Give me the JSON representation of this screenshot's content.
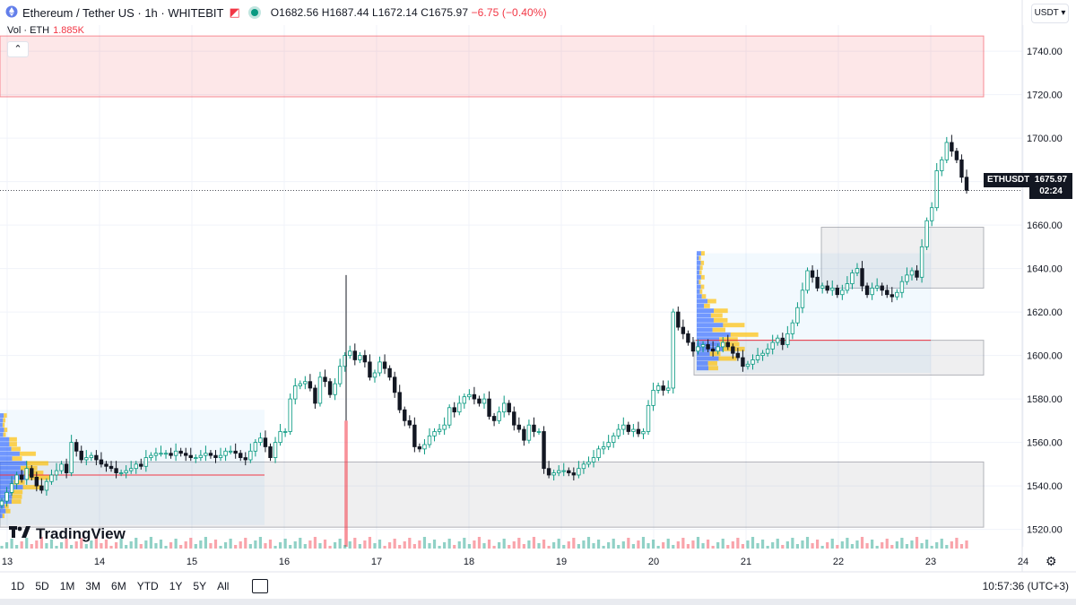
{
  "header": {
    "title": "Ethereum / Tether US · 1h · WHITEBIT",
    "open": "O1682.56",
    "high": "H1687.44",
    "low": "L1672.14",
    "close": "C1675.97",
    "change": "−6.75 (−0.40%)"
  },
  "volume": {
    "label": "Vol · ETH",
    "value": "1.885K"
  },
  "currency": "USDT",
  "last_price": {
    "symbol": "ETHUSDT",
    "price": "1675.97",
    "countdown": "02:24"
  },
  "logo_text": "TradingView",
  "timeframes": [
    "1D",
    "5D",
    "1M",
    "3M",
    "6M",
    "YTD",
    "1Y",
    "5Y",
    "All"
  ],
  "clock": "10:57:36 (UTC+3)",
  "colors": {
    "up": "#089981",
    "down": "#131722",
    "zone": "#f23645"
  },
  "chart_data": {
    "type": "candlestick",
    "title": "",
    "xlabel": "",
    "ylabel": "",
    "ylim": [
      1512,
      1752
    ],
    "yticks": [
      1520,
      1540,
      1560,
      1580,
      1600,
      1620,
      1640,
      1660,
      1680,
      1700,
      1720,
      1740
    ],
    "ytick_labels": [
      "1520.00",
      "1540.00",
      "1560.00",
      "1580.00",
      "1600.00",
      "1620.00",
      "1640.00",
      "1660.00",
      "1680.00",
      "1700.00",
      "1720.00",
      "1740.00"
    ],
    "x_ticks": [
      "13",
      "14",
      "15",
      "16",
      "17",
      "18",
      "19",
      "20",
      "21",
      "22",
      "23",
      "24"
    ],
    "grid": true,
    "last_price": 1675.97,
    "series_closes": [
      1533,
      1537,
      1541,
      1545,
      1543,
      1548,
      1544,
      1540,
      1538,
      1542,
      1545,
      1547,
      1550,
      1546,
      1560,
      1556,
      1552,
      1553,
      1554,
      1552,
      1550,
      1549,
      1548,
      1546,
      1546,
      1547,
      1548,
      1550,
      1549,
      1553,
      1554,
      1555,
      1555,
      1555,
      1554,
      1556,
      1555,
      1554,
      1553,
      1553,
      1554,
      1555,
      1554,
      1553,
      1554,
      1556,
      1556,
      1555,
      1553,
      1552,
      1556,
      1560,
      1562,
      1558,
      1553,
      1560,
      1565,
      1565,
      1580,
      1586,
      1587,
      1588,
      1585,
      1578,
      1590,
      1588,
      1582,
      1587,
      1595,
      1600,
      1602,
      1598,
      1600,
      1597,
      1590,
      1592,
      1597,
      1594,
      1590,
      1583,
      1575,
      1570,
      1568,
      1558,
      1557,
      1559,
      1563,
      1565,
      1566,
      1568,
      1576,
      1574,
      1578,
      1581,
      1582,
      1580,
      1578,
      1580,
      1572,
      1570,
      1574,
      1578,
      1574,
      1568,
      1566,
      1561,
      1568,
      1565,
      1565,
      1548,
      1545,
      1546,
      1547,
      1547,
      1546,
      1545,
      1548,
      1550,
      1551,
      1553,
      1557,
      1558,
      1560,
      1563,
      1566,
      1568,
      1565,
      1566,
      1564,
      1565,
      1577,
      1584,
      1586,
      1584,
      1585,
      1620,
      1613,
      1610,
      1606,
      1602,
      1604,
      1605,
      1603,
      1602,
      1604,
      1606,
      1604,
      1601,
      1599,
      1595,
      1596,
      1598,
      1600,
      1601,
      1603,
      1606,
      1608,
      1605,
      1610,
      1615,
      1622,
      1630,
      1639,
      1636,
      1631,
      1632,
      1630,
      1631,
      1628,
      1630,
      1633,
      1638,
      1640,
      1632,
      1628,
      1631,
      1632,
      1630,
      1628,
      1627,
      1629,
      1634,
      1637,
      1639,
      1636,
      1650,
      1662,
      1668,
      1685,
      1690,
      1698,
      1694,
      1690,
      1682,
      1675.97
    ],
    "price_zones": [
      {
        "from": 1719,
        "to": 1747,
        "color": "#f23645"
      },
      {
        "from": 1631,
        "to": 1659
      },
      {
        "from": 1591,
        "to": 1607
      },
      {
        "from": 1521,
        "to": 1551
      }
    ],
    "poc_levels": [
      1545,
      1607
    ]
  }
}
